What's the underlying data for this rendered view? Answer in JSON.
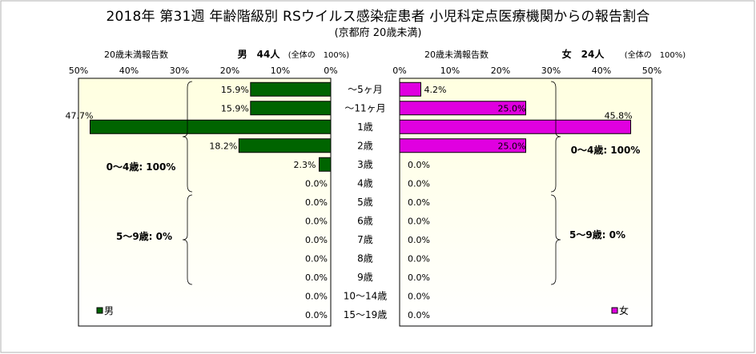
{
  "title": "2018年 第31週 年齢階級別 RSウイルス感染症患者 小児科定点医療機関からの報告割合",
  "subtitle": "(京都府 20歳未満)",
  "chart_data": [
    {
      "type": "bar",
      "orientation": "horizontal",
      "direction": "leftward",
      "header_count": "20歳未満報告数",
      "header_total": "男　44人",
      "header_note": "(全体の　100%)",
      "xlim": [
        0,
        50
      ],
      "x_ticks": [
        "50%",
        "40%",
        "30%",
        "20%",
        "10%",
        "0%"
      ],
      "categories": [
        "～5ヶ月",
        "～11ヶ月",
        "1歳",
        "2歳",
        "3歳",
        "4歳",
        "5歳",
        "6歳",
        "7歳",
        "8歳",
        "9歳",
        "10～14歳",
        "15～19歳"
      ],
      "series": [
        {
          "name": "男",
          "color": "#006400",
          "values": [
            15.9,
            15.9,
            47.7,
            18.2,
            2.3,
            0.0,
            0.0,
            0.0,
            0.0,
            0.0,
            0.0,
            0.0,
            0.0
          ],
          "labels": [
            "15.9%",
            "15.9%",
            "47.7%",
            "18.2%",
            "2.3%",
            "0.0%",
            "0.0%",
            "0.0%",
            "0.0%",
            "0.0%",
            "0.0%",
            "0.0%",
            "0.0%"
          ]
        }
      ],
      "group_labels": [
        "0～4歳: 100%",
        "5～9歳: 0%"
      ],
      "legend": "bottom-left",
      "background": [
        "#ffffe0",
        "#ffffff"
      ]
    },
    {
      "type": "bar",
      "orientation": "horizontal",
      "direction": "rightward",
      "header_count": "20歳未満報告数",
      "header_total": "女　24人",
      "header_note": "(全体の　100%)",
      "xlim": [
        0,
        50
      ],
      "x_ticks": [
        "0%",
        "10%",
        "20%",
        "30%",
        "40%",
        "50%"
      ],
      "categories": [
        "～5ヶ月",
        "～11ヶ月",
        "1歳",
        "2歳",
        "3歳",
        "4歳",
        "5歳",
        "6歳",
        "7歳",
        "8歳",
        "9歳",
        "10～14歳",
        "15～19歳"
      ],
      "series": [
        {
          "name": "女",
          "color": "#e000e0",
          "values": [
            4.2,
            25.0,
            45.8,
            25.0,
            0.0,
            0.0,
            0.0,
            0.0,
            0.0,
            0.0,
            0.0,
            0.0,
            0.0
          ],
          "labels": [
            "4.2%",
            "25.0%",
            "45.8%",
            "25.0%",
            "0.0%",
            "0.0%",
            "0.0%",
            "0.0%",
            "0.0%",
            "0.0%",
            "0.0%",
            "0.0%",
            "0.0%"
          ]
        }
      ],
      "group_labels": [
        "0～4歳: 100%",
        "5～9歳: 0%"
      ],
      "legend": "bottom-right",
      "background": [
        "#ffffe0",
        "#ffffff"
      ]
    }
  ]
}
